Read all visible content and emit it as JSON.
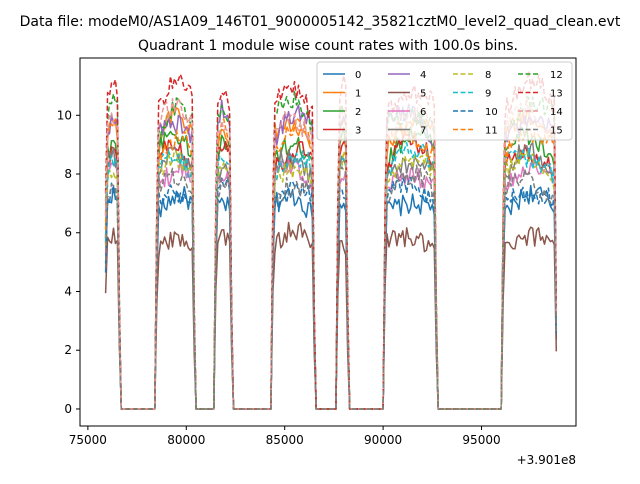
{
  "chart_data": {
    "type": "line",
    "suptitle": "Data file: modeM0/AS1A09_146T01_9000005142_35821cztM0_level2_quad_clean.evt",
    "title": "Quadrant 1 module wise count rates with 100.0s bins.",
    "xlabel": "",
    "ylabel": "",
    "x_offset_label": "+3.901e8",
    "xlim": [
      74600,
      99800
    ],
    "ylim": [
      -0.58,
      11.95
    ],
    "x_ticks": [
      75000,
      80000,
      85000,
      90000,
      95000
    ],
    "x_tick_labels": [
      "75000",
      "80000",
      "85000",
      "90000",
      "95000"
    ],
    "y_ticks": [
      0,
      2,
      4,
      6,
      8,
      10
    ],
    "y_tick_labels": [
      "0",
      "2",
      "4",
      "6",
      "8",
      "10"
    ],
    "grid": false,
    "legend_position": "top-right",
    "legend_columns": 4,
    "on_segments": [
      [
        75900,
        76600
      ],
      [
        78500,
        80400
      ],
      [
        81500,
        82300
      ],
      [
        84400,
        86500
      ],
      [
        87700,
        88200
      ],
      [
        90100,
        92700
      ],
      [
        96100,
        98800
      ]
    ],
    "series": [
      {
        "name": "0",
        "color": "#1f77b4",
        "dash": "solid",
        "level": 6.7
      },
      {
        "name": "1",
        "color": "#ff7f0e",
        "dash": "solid",
        "level": 9.1
      },
      {
        "name": "2",
        "color": "#2ca02c",
        "dash": "solid",
        "level": 8.6
      },
      {
        "name": "3",
        "color": "#d62728",
        "dash": "solid",
        "level": 8.3
      },
      {
        "name": "4",
        "color": "#9467bd",
        "dash": "solid",
        "level": 9.3
      },
      {
        "name": "5",
        "color": "#8c564b",
        "dash": "solid",
        "level": 5.5
      },
      {
        "name": "6",
        "color": "#e377c2",
        "dash": "solid",
        "level": 7.6
      },
      {
        "name": "7",
        "color": "#7f7f7f",
        "dash": "solid",
        "level": 8.0
      },
      {
        "name": "8",
        "color": "#bcbd22",
        "dash": "dashed",
        "level": 7.8
      },
      {
        "name": "9",
        "color": "#17becf",
        "dash": "dashed",
        "level": 8.1
      },
      {
        "name": "10",
        "color": "#1f77b4",
        "dash": "dashed",
        "level": 7.0
      },
      {
        "name": "11",
        "color": "#ff7f0e",
        "dash": "dashed",
        "level": 8.8
      },
      {
        "name": "12",
        "color": "#2ca02c",
        "dash": "dashed",
        "level": 9.6
      },
      {
        "name": "13",
        "color": "#d62728",
        "dash": "dashed",
        "level": 10.2
      },
      {
        "name": "14",
        "color": "#e89a9a",
        "dash": "dashed",
        "level": 9.4
      },
      {
        "name": "15",
        "color": "#7f7f7f",
        "dash": "dashed",
        "level": 7.3
      }
    ]
  }
}
